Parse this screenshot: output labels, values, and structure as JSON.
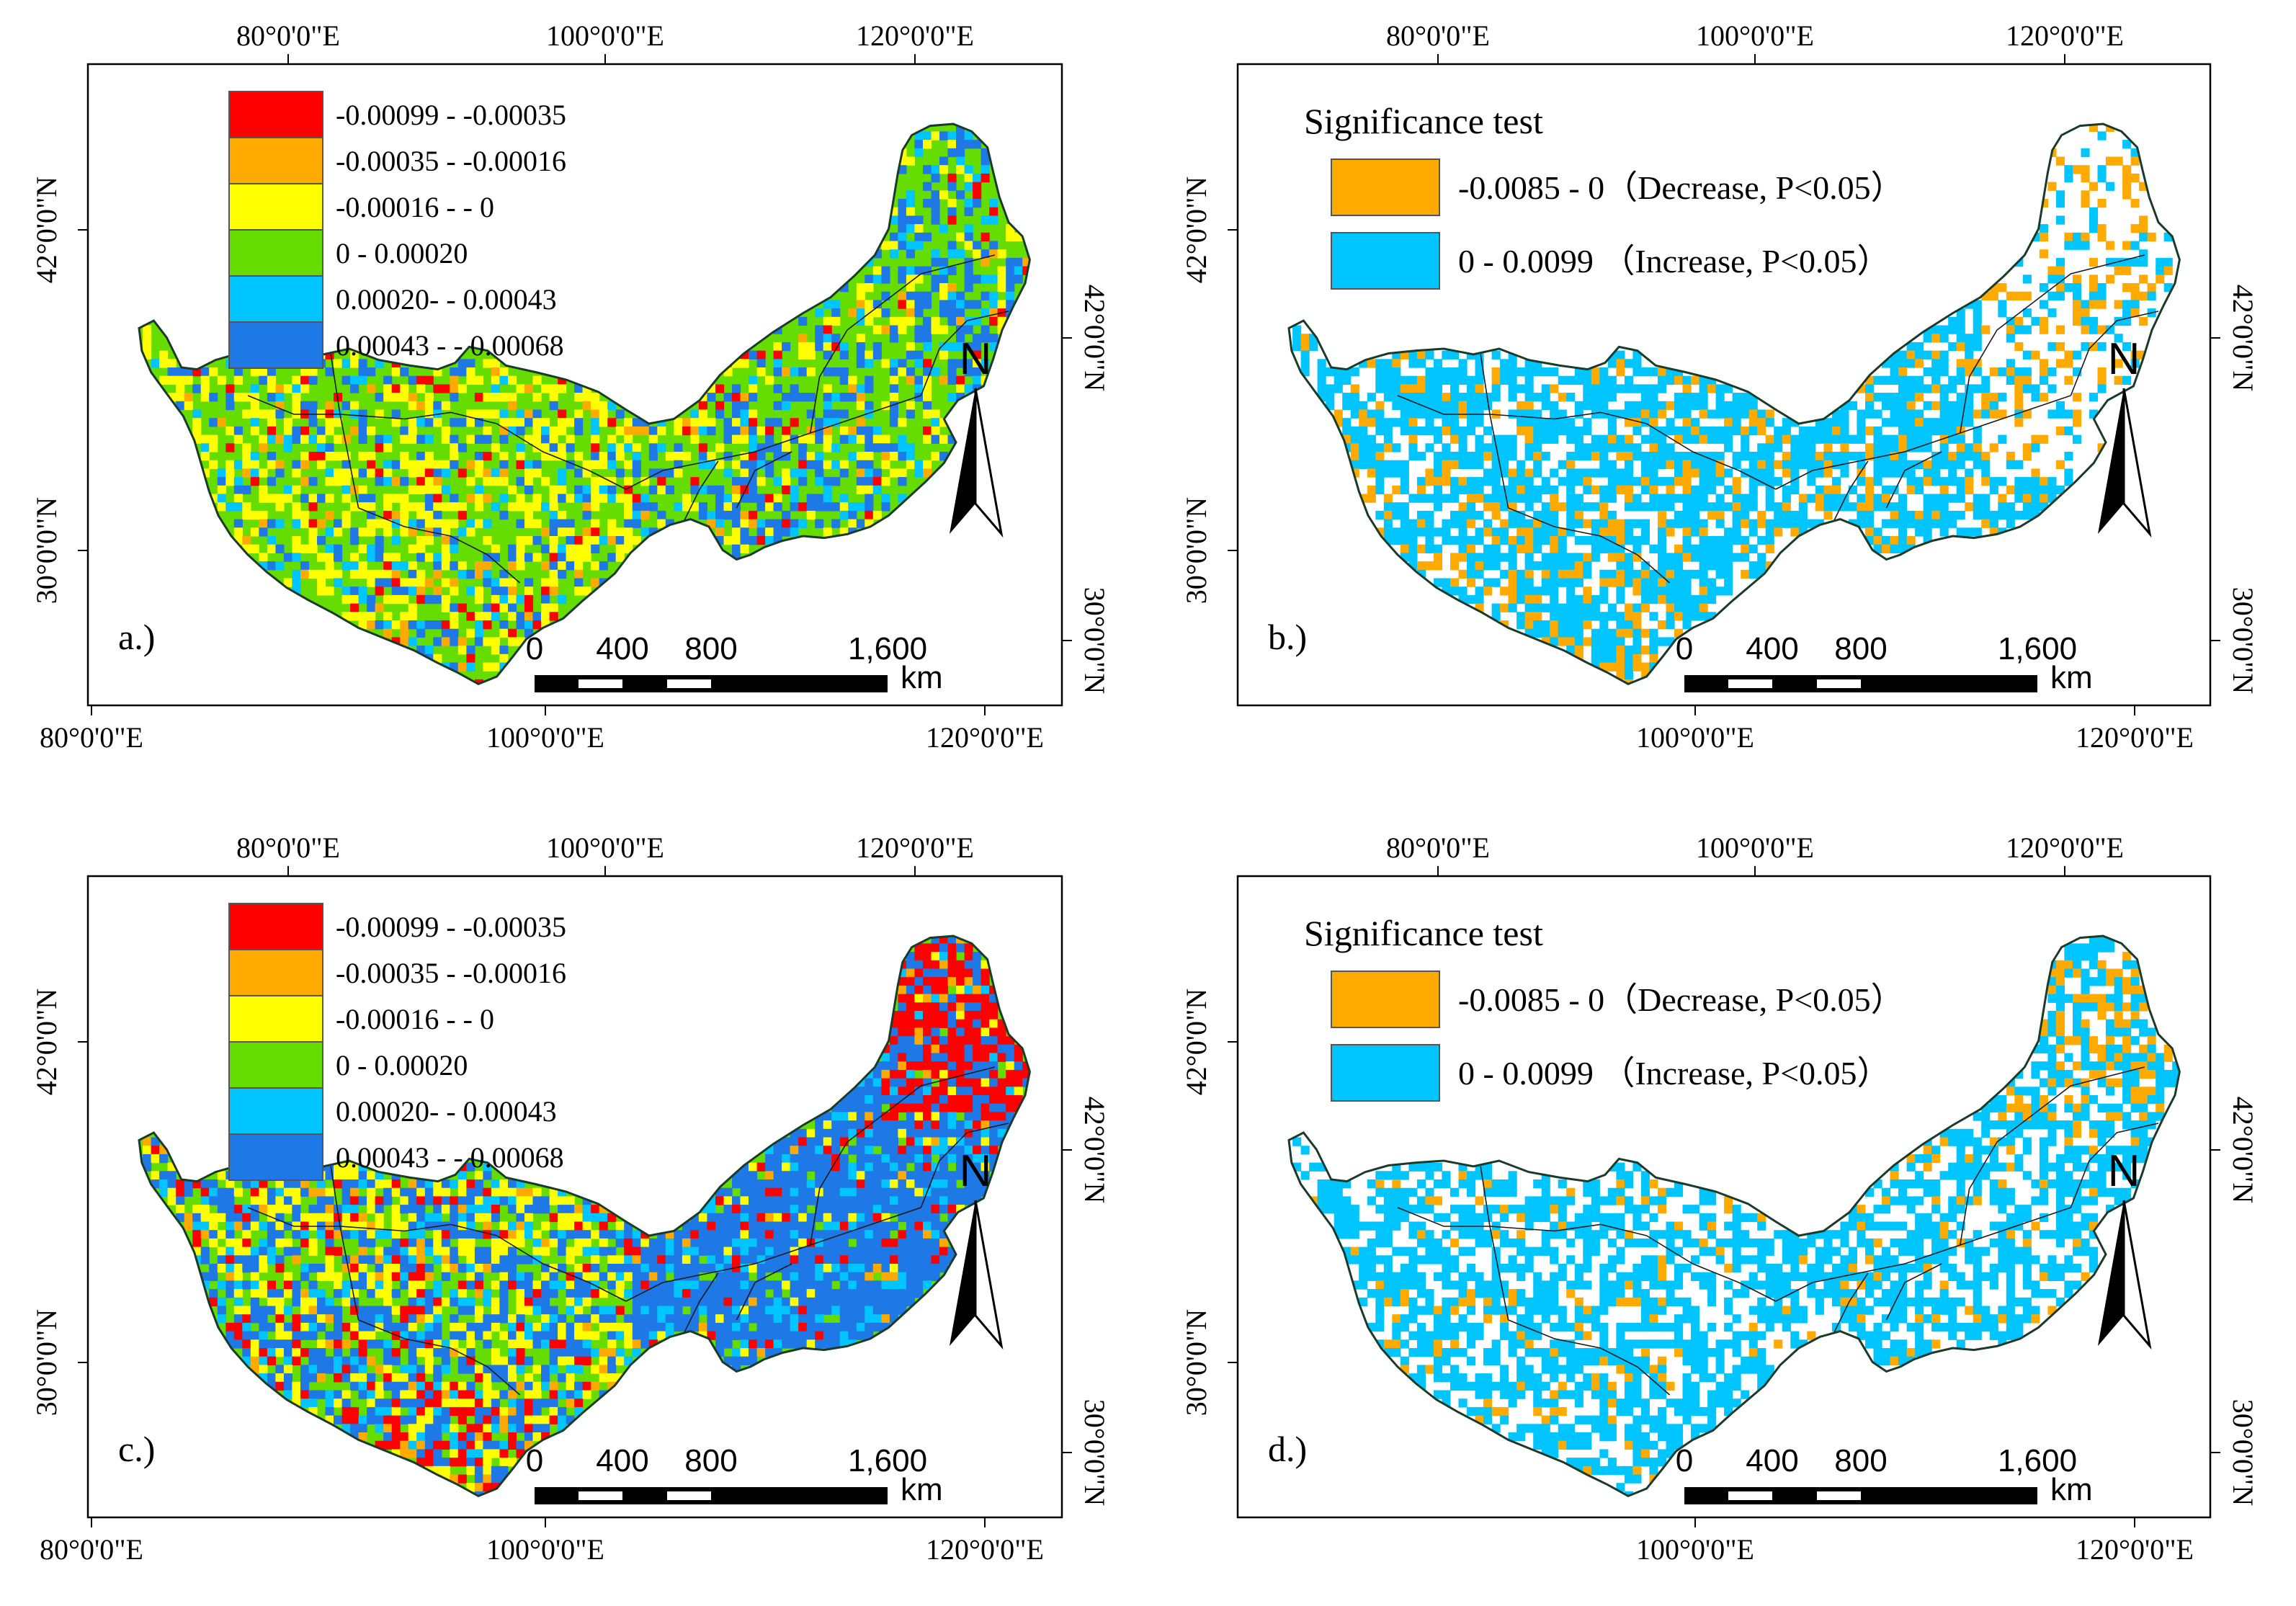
{
  "colors": {
    "class_1": "#ff0000",
    "class_2": "#ffaa00",
    "class_3": "#ffff00",
    "class_4": "#66dd00",
    "class_5": "#00c5ff",
    "class_6": "#1e78e6",
    "decrease": "#ffaa00",
    "increase": "#00c5ff",
    "frame": "#000000",
    "boundary": "#1a3a2a"
  },
  "panels": [
    {
      "id": "a",
      "label": "a.)",
      "type": "trend",
      "top_longitudes": [
        "80°0'0\"E",
        "100°0'0\"E",
        "120°0'0\"E"
      ],
      "bottom_longitudes": [
        "80°0'0\"E",
        "100°0'0\"E",
        "120°0'0\"E"
      ],
      "left_latitudes": [
        "42°0'0\"N",
        "30°0'0\"N"
      ],
      "right_latitudes": [
        "42°0'0\"N",
        "30°0'0\"N"
      ],
      "legend": [
        {
          "label": "-0.00099 - -0.00035",
          "color_key": "class_1"
        },
        {
          "label": "-0.00035 - -0.00016",
          "color_key": "class_2"
        },
        {
          "label": "-0.00016 - - 0",
          "color_key": "class_3"
        },
        {
          "label": "0 - 0.00020",
          "color_key": "class_4"
        },
        {
          "label": "0.00020- - 0.00043",
          "color_key": "class_5"
        },
        {
          "label": "0.00043 - - 0.00068",
          "color_key": "class_6"
        }
      ],
      "scale_ticks": [
        "0",
        "400",
        "800",
        "1,600"
      ],
      "scale_unit": "km",
      "north": "N",
      "class_weights": [
        0.03,
        0.04,
        0.3,
        0.45,
        0.06,
        0.12
      ]
    },
    {
      "id": "b",
      "label": "b.)",
      "type": "significance",
      "top_longitudes": [
        "80°0'0\"E",
        "100°0'0\"E",
        "120°0'0\"E"
      ],
      "bottom_longitudes": [
        "100°0'0\"E",
        "120°0'0\"E"
      ],
      "left_latitudes": [
        "42°0'0\"N",
        "30°0'0\"N"
      ],
      "right_latitudes": [
        "42°0'0\"N",
        "30°0'0\"N"
      ],
      "legend_title": "Significance test",
      "legend": [
        {
          "label": "-0.0085  - 0（Decrease, P<0.05）",
          "color_key": "decrease"
        },
        {
          "label": "0 - 0.0099 （Increase, P<0.05）",
          "color_key": "increase"
        }
      ],
      "scale_ticks": [
        "0",
        "400",
        "800",
        "1,600"
      ],
      "scale_unit": "km",
      "north": "N",
      "class_weights": [
        0.12,
        0.6,
        0.28
      ]
    },
    {
      "id": "c",
      "label": "c.)",
      "type": "trend",
      "top_longitudes": [
        "80°0'0\"E",
        "100°0'0\"E",
        "120°0'0\"E"
      ],
      "bottom_longitudes": [
        "80°0'0\"E",
        "100°0'0\"E",
        "120°0'0\"E"
      ],
      "left_latitudes": [
        "42°0'0\"N",
        "30°0'0\"N"
      ],
      "right_latitudes": [
        "42°0'0\"N",
        "30°0'0\"N"
      ],
      "legend": [
        {
          "label": "-0.00099 - -0.00035",
          "color_key": "class_1"
        },
        {
          "label": "-0.00035 - -0.00016",
          "color_key": "class_2"
        },
        {
          "label": "-0.00016 - - 0",
          "color_key": "class_3"
        },
        {
          "label": "0 - 0.00020",
          "color_key": "class_4"
        },
        {
          "label": "0.00020- - 0.00043",
          "color_key": "class_5"
        },
        {
          "label": "0.00043 - - 0.00068",
          "color_key": "class_6"
        }
      ],
      "scale_ticks": [
        "0",
        "400",
        "800",
        "1,600"
      ],
      "scale_unit": "km",
      "north": "N",
      "class_weights": [
        0.08,
        0.06,
        0.22,
        0.22,
        0.12,
        0.3
      ]
    },
    {
      "id": "d",
      "label": "d.)",
      "type": "significance",
      "top_longitudes": [
        "80°0'0\"E",
        "100°0'0\"E",
        "120°0'0\"E"
      ],
      "bottom_longitudes": [
        "100°0'0\"E",
        "120°0'0\"E"
      ],
      "left_latitudes": [
        "42°0'0\"N",
        "30°0'0\"N"
      ],
      "right_latitudes": [
        "42°0'0\"N",
        "30°0'0\"N"
      ],
      "legend_title": "Significance test",
      "legend": [
        {
          "label": "-0.0085  - 0（Decrease, P<0.05）",
          "color_key": "decrease"
        },
        {
          "label": "0 - 0.0099 （Increase, P<0.05）",
          "color_key": "increase"
        }
      ],
      "scale_ticks": [
        "0",
        "400",
        "800",
        "1,600"
      ],
      "scale_unit": "km",
      "north": "N",
      "class_weights": [
        0.05,
        0.55,
        0.4
      ]
    }
  ]
}
